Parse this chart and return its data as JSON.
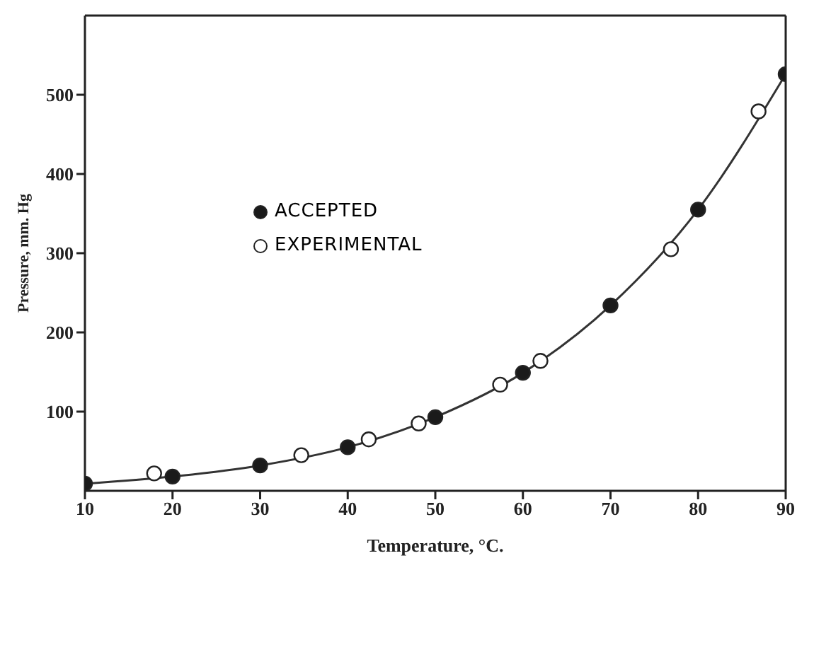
{
  "chart_data": {
    "type": "scatter",
    "xlabel": "Temperature, °C.",
    "ylabel": "Pressure, mm. Hg",
    "xlim": [
      10,
      90
    ],
    "ylim": [
      0,
      600
    ],
    "xticks": [
      10,
      20,
      30,
      40,
      50,
      60,
      70,
      80,
      90
    ],
    "yticks": [
      100,
      200,
      300,
      400,
      500
    ],
    "grid": false,
    "legend": "top left",
    "marker": "circle",
    "series": [
      {
        "name": "ACCEPTED",
        "color": "#1a1a1a",
        "x": [
          10,
          20,
          30,
          40,
          50,
          60,
          70,
          80,
          90
        ],
        "values": [
          9,
          18,
          32,
          55,
          93,
          149,
          234,
          355,
          526
        ]
      },
      {
        "name": "EXPERIMENTAL",
        "color": "#ffffff",
        "x": [
          17.9,
          34.7,
          42.4,
          48.1,
          57.4,
          62.0,
          76.9,
          86.9
        ],
        "values": [
          22,
          45,
          65,
          85,
          134,
          164,
          305,
          479
        ]
      },
      {
        "type": "line",
        "color": "#333333",
        "marker": "none",
        "line_style": "solid",
        "x": [
          10,
          20,
          30,
          40,
          50,
          60,
          70,
          80,
          90
        ],
        "values": [
          9,
          18,
          32,
          55,
          93,
          149,
          234,
          355,
          526
        ]
      }
    ]
  }
}
